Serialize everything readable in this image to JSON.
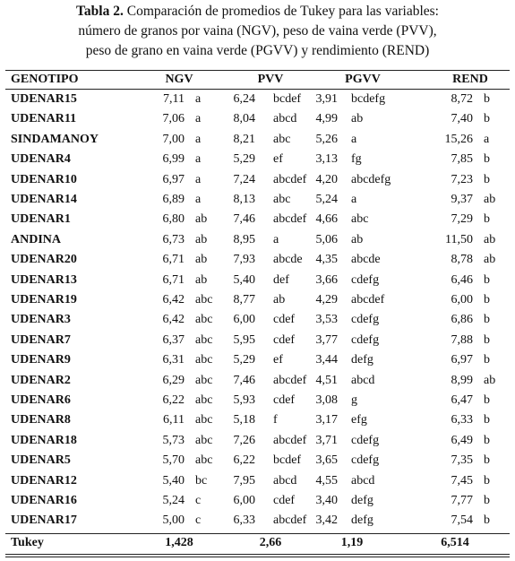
{
  "caption": {
    "label": "Tabla 2.",
    "lines": [
      "Comparación de promedios de Tukey para las variables:",
      "número de granos por vaina (NGV), peso de vaina verde (PVV),",
      "peso de grano en vaina verde (PGVV) y rendimiento (REND)"
    ]
  },
  "table": {
    "header": [
      "GENOTIPO",
      "NGV",
      "PVV",
      "PGVV",
      "REND"
    ],
    "rows": [
      [
        "UDENAR15",
        "7,11",
        "a",
        "6,24",
        "bcdef",
        "3,91",
        "bcdefg",
        "8,72",
        "b"
      ],
      [
        "UDENAR11",
        "7,06",
        "a",
        "8,04",
        "abcd",
        "4,99",
        "ab",
        "7,40",
        "b"
      ],
      [
        "SINDAMANOY",
        "7,00",
        "a",
        "8,21",
        "abc",
        "5,26",
        "a",
        "15,26",
        "a"
      ],
      [
        "UDENAR4",
        "6,99",
        "a",
        "5,29",
        "ef",
        "3,13",
        "fg",
        "7,85",
        "b"
      ],
      [
        "UDENAR10",
        "6,97",
        "a",
        "7,24",
        "abcdef",
        "4,20",
        "abcdefg",
        "7,23",
        "b"
      ],
      [
        "UDENAR14",
        "6,89",
        "a",
        "8,13",
        "abc",
        "5,24",
        "a",
        "9,37",
        "ab"
      ],
      [
        "UDENAR1",
        "6,80",
        "ab",
        "7,46",
        "abcdef",
        "4,66",
        "abc",
        "7,29",
        "b"
      ],
      [
        "ANDINA",
        "6,73",
        "ab",
        "8,95",
        "a",
        "5,06",
        "ab",
        "11,50",
        "ab"
      ],
      [
        "UDENAR20",
        "6,71",
        "ab",
        "7,93",
        "abcde",
        "4,35",
        "abcde",
        "8,78",
        "ab"
      ],
      [
        "UDENAR13",
        "6,71",
        "ab",
        "5,40",
        "def",
        "3,66",
        "cdefg",
        "6,46",
        "b"
      ],
      [
        "UDENAR19",
        "6,42",
        "abc",
        "8,77",
        "ab",
        "4,29",
        "abcdef",
        "6,00",
        "b"
      ],
      [
        "UDENAR3",
        "6,42",
        "abc",
        "6,00",
        "cdef",
        "3,53",
        "cdefg",
        "6,86",
        "b"
      ],
      [
        "UDENAR7",
        "6,37",
        "abc",
        "5,95",
        "cdef",
        "3,77",
        "cdefg",
        "7,88",
        "b"
      ],
      [
        "UDENAR9",
        "6,31",
        "abc",
        "5,29",
        "ef",
        "3,44",
        "defg",
        "6,97",
        "b"
      ],
      [
        "UDENAR2",
        "6,29",
        "abc",
        "7,46",
        "abcdef",
        "4,51",
        "abcd",
        "8,99",
        "ab"
      ],
      [
        "UDENAR6",
        "6,22",
        "abc",
        "5,93",
        "cdef",
        "3,08",
        "g",
        "6,47",
        "b"
      ],
      [
        "UDENAR8",
        "6,11",
        "abc",
        "5,18",
        "f",
        "3,17",
        "efg",
        "6,33",
        "b"
      ],
      [
        "UDENAR18",
        "5,73",
        "abc",
        "7,26",
        "abcdef",
        "3,71",
        "cdefg",
        "6,49",
        "b"
      ],
      [
        "UDENAR5",
        "5,70",
        "abc",
        "6,22",
        "bcdef",
        "3,65",
        "cdefg",
        "7,35",
        "b"
      ],
      [
        "UDENAR12",
        "5,40",
        "bc",
        "7,95",
        "abcd",
        "4,55",
        "abcd",
        "7,45",
        "b"
      ],
      [
        "UDENAR16",
        "5,24",
        "c",
        "6,00",
        "cdef",
        "3,40",
        "defg",
        "7,77",
        "b"
      ],
      [
        "UDENAR17",
        "5,00",
        "c",
        "6,33",
        "abcdef",
        "3,42",
        "defg",
        "7,54",
        "b"
      ]
    ],
    "footer": [
      "Tukey",
      "1,428",
      "2,66",
      "1,19",
      "6,514"
    ]
  }
}
